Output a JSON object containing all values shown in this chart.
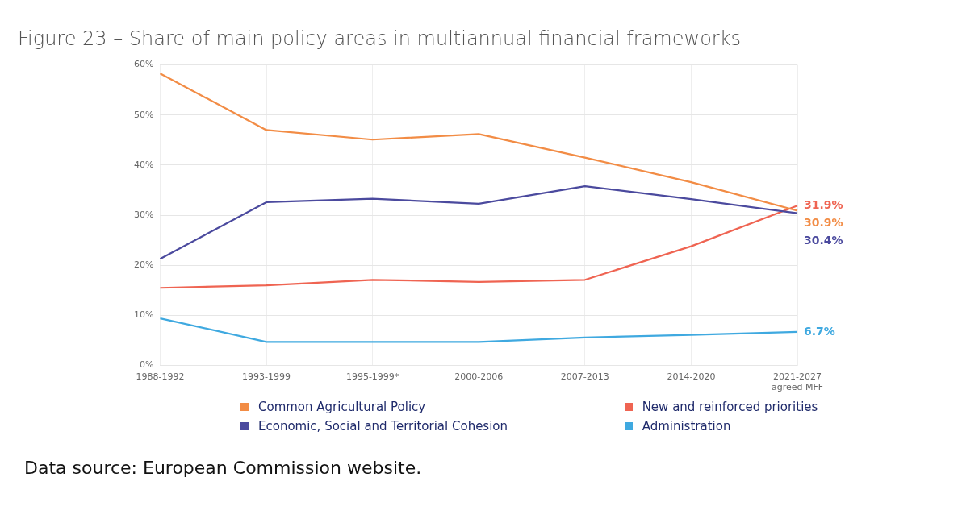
{
  "chart_data": {
    "type": "line",
    "title": "Figure 23 – Share of main policy areas in multiannual financial frameworks",
    "categories": [
      "1988-1992",
      "1993-1999",
      "1995-1999*",
      "2000-2006",
      "2007-2013",
      "2014-2020",
      "2021-2027\nagreed MFF"
    ],
    "series": [
      {
        "name": "Common Agricultural Policy",
        "color": "#f28c45",
        "values": [
          58.3,
          47.0,
          45.1,
          46.2,
          41.5,
          36.6,
          30.9
        ],
        "value_labels": [
          null,
          null,
          null,
          null,
          null,
          null,
          "30.9%"
        ]
      },
      {
        "name": "Economic, Social and Territorial Cohesion",
        "color": "#4b4a9e",
        "values": [
          21.3,
          32.6,
          33.3,
          32.3,
          35.8,
          33.2,
          30.4
        ],
        "value_labels": [
          null,
          null,
          null,
          null,
          null,
          null,
          "30.4%"
        ]
      },
      {
        "name": "New and reinforced priorities",
        "color": "#ef6452",
        "values": [
          15.5,
          16.0,
          17.1,
          16.7,
          17.1,
          23.8,
          31.9
        ],
        "value_labels": [
          null,
          null,
          null,
          null,
          null,
          null,
          "31.9%"
        ]
      },
      {
        "name": "Administration",
        "color": "#3fa9e0",
        "values": [
          9.4,
          4.7,
          4.7,
          4.7,
          5.6,
          6.1,
          6.7
        ],
        "value_labels": [
          null,
          null,
          null,
          null,
          null,
          null,
          "6.7%"
        ]
      }
    ],
    "ylim": [
      0,
      60
    ],
    "yticks": [
      {
        "value": 0,
        "label": "0%"
      },
      {
        "value": 10,
        "label": "10%"
      },
      {
        "value": 20,
        "label": "20%"
      },
      {
        "value": 30,
        "label": "30%"
      },
      {
        "value": 40,
        "label": "40%"
      },
      {
        "value": 50,
        "label": "50%"
      },
      {
        "value": 60,
        "label": "60%"
      }
    ],
    "grid": true,
    "legend": "bottom",
    "marker": "none",
    "line_style": "solid",
    "annotations": [
      "Data source: European Commission website."
    ]
  }
}
